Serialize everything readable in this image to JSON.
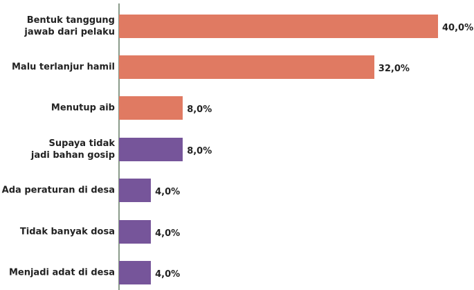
{
  "chart_data": {
    "type": "barh",
    "categories": [
      "Bentuk tanggung\njawab dari pelaku",
      "Malu terlanjur hamil",
      "Menutup aib",
      "Supaya tidak\njadi bahan gosip",
      "Ada peraturan di desa",
      "Tidak banyak dosa",
      "Menjadi adat di desa"
    ],
    "values": [
      40,
      32,
      8,
      8,
      4,
      4,
      4
    ],
    "value_labels": [
      "40,0%",
      "32,0%",
      "8,0%",
      "8,0%",
      "4,0%",
      "4,0%",
      "4,0%"
    ],
    "colors": [
      "#e07a62",
      "#e07a62",
      "#e07a62",
      "#76559a",
      "#76559a",
      "#76559a",
      "#76559a"
    ]
  }
}
